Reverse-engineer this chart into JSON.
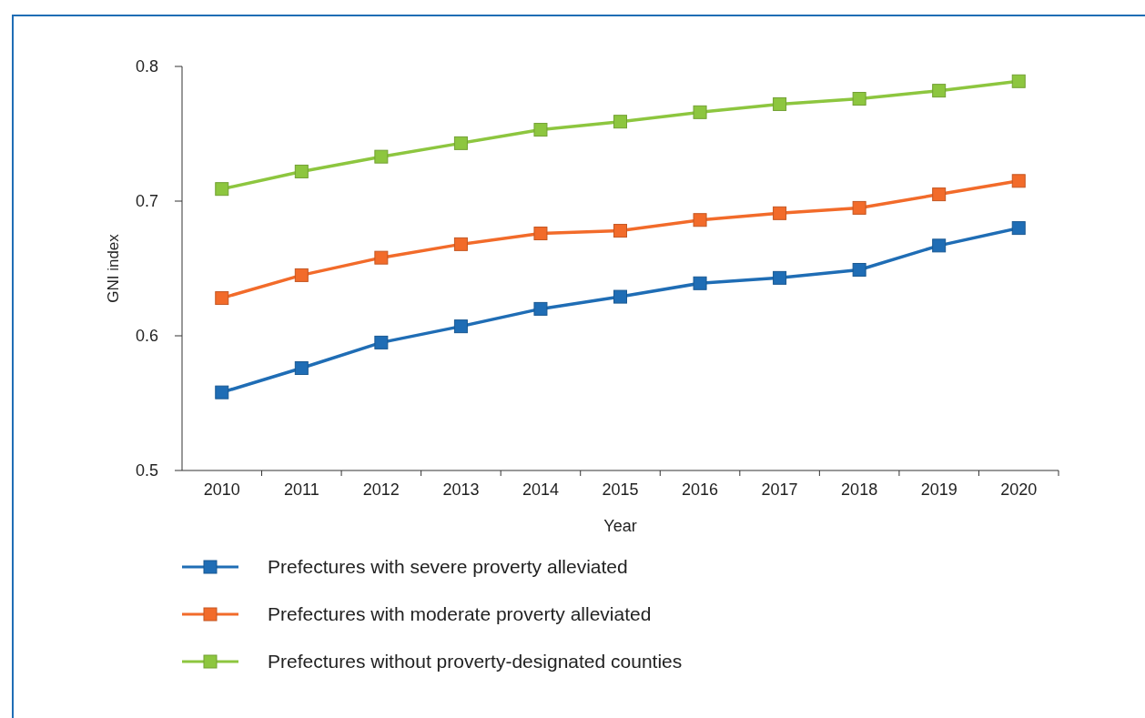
{
  "chart_data": {
    "type": "line",
    "xlabel": "Year",
    "ylabel": "GNI index",
    "categories": [
      "2010",
      "2011",
      "2012",
      "2013",
      "2014",
      "2015",
      "2016",
      "2017",
      "2018",
      "2019",
      "2020"
    ],
    "series": [
      {
        "name": "Prefectures with severe proverty alleviated",
        "color": "#1f6db5",
        "values": [
          0.558,
          0.576,
          0.595,
          0.607,
          0.62,
          0.629,
          0.639,
          0.643,
          0.649,
          0.667,
          0.68
        ]
      },
      {
        "name": "Prefectures with moderate proverty alleviated",
        "color": "#f26b2a",
        "values": [
          0.628,
          0.645,
          0.658,
          0.668,
          0.676,
          0.678,
          0.686,
          0.691,
          0.695,
          0.705,
          0.715
        ]
      },
      {
        "name": "Prefectures without proverty-designated counties",
        "color": "#8dc63f",
        "values": [
          0.709,
          0.722,
          0.733,
          0.743,
          0.753,
          0.759,
          0.766,
          0.772,
          0.776,
          0.782,
          0.789
        ]
      }
    ],
    "ylim": [
      0.5,
      0.8
    ],
    "yticks": [
      0.5,
      0.6,
      0.7,
      0.8
    ],
    "legend": "bottom",
    "marker": "square",
    "line_style": "solid",
    "grid": false
  }
}
